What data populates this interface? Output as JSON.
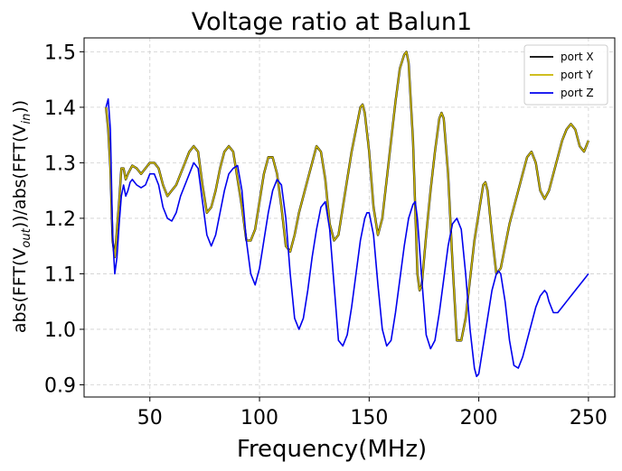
{
  "chart_data": {
    "type": "line",
    "title": "Voltage ratio at Balun1",
    "xlabel": "Frequency(MHz)",
    "ylabel": "abs(FFT(V_out))/abs(FFT(V_in))",
    "ylabel_parts": {
      "prefix": "abs(FFT(V",
      "sub1": "out",
      "middle": "))/abs(FFT(V",
      "sub2": "in",
      "suffix": "))"
    },
    "xlim": [
      20,
      262
    ],
    "ylim": [
      0.878,
      1.525
    ],
    "xticks": [
      50,
      100,
      150,
      200,
      250
    ],
    "xtick_labels": [
      "50",
      "100",
      "150",
      "200",
      "250"
    ],
    "yticks": [
      0.9,
      1.0,
      1.1,
      1.2,
      1.3,
      1.4,
      1.5
    ],
    "ytick_labels": [
      "0.9",
      "1.0",
      "1.1",
      "1.2",
      "1.3",
      "1.4",
      "1.5"
    ],
    "grid": true,
    "legend_position": "top-right",
    "series": [
      {
        "name": "port X",
        "color": "#000000",
        "x": [
          30,
          31,
          32,
          33,
          34,
          35,
          36,
          37,
          38,
          39,
          40,
          42,
          44,
          46,
          48,
          50,
          52,
          54,
          56,
          58,
          60,
          62,
          64,
          66,
          68,
          70,
          72,
          74,
          76,
          78,
          80,
          82,
          84,
          86,
          88,
          90,
          92,
          94,
          96,
          98,
          100,
          102,
          104,
          106,
          108,
          110,
          112,
          114,
          116,
          118,
          120,
          122,
          124,
          126,
          128,
          130,
          132,
          134,
          136,
          138,
          140,
          142,
          144,
          146,
          147,
          148,
          150,
          152,
          154,
          156,
          158,
          160,
          162,
          164,
          166,
          167,
          168,
          170,
          171,
          172,
          173,
          174,
          176,
          178,
          180,
          182,
          183,
          184,
          186,
          188,
          190,
          192,
          194,
          196,
          198,
          200,
          202,
          203,
          204,
          206,
          208,
          210,
          212,
          214,
          216,
          218,
          220,
          222,
          224,
          226,
          228,
          230,
          232,
          234,
          236,
          238,
          240,
          242,
          244,
          246,
          248,
          250
        ],
        "y": [
          1.4,
          1.36,
          1.29,
          1.16,
          1.13,
          1.18,
          1.23,
          1.29,
          1.29,
          1.27,
          1.28,
          1.295,
          1.29,
          1.28,
          1.29,
          1.3,
          1.3,
          1.29,
          1.26,
          1.24,
          1.25,
          1.26,
          1.28,
          1.3,
          1.32,
          1.33,
          1.32,
          1.26,
          1.21,
          1.22,
          1.25,
          1.29,
          1.32,
          1.33,
          1.32,
          1.27,
          1.22,
          1.16,
          1.16,
          1.18,
          1.23,
          1.28,
          1.31,
          1.31,
          1.28,
          1.22,
          1.15,
          1.14,
          1.17,
          1.21,
          1.24,
          1.27,
          1.3,
          1.33,
          1.32,
          1.27,
          1.19,
          1.16,
          1.17,
          1.22,
          1.27,
          1.32,
          1.36,
          1.4,
          1.405,
          1.39,
          1.32,
          1.22,
          1.17,
          1.2,
          1.27,
          1.34,
          1.41,
          1.47,
          1.495,
          1.5,
          1.48,
          1.34,
          1.22,
          1.1,
          1.07,
          1.08,
          1.17,
          1.25,
          1.32,
          1.38,
          1.39,
          1.38,
          1.28,
          1.12,
          0.98,
          0.98,
          1.02,
          1.09,
          1.16,
          1.21,
          1.26,
          1.265,
          1.25,
          1.17,
          1.1,
          1.11,
          1.15,
          1.19,
          1.22,
          1.25,
          1.28,
          1.31,
          1.32,
          1.3,
          1.25,
          1.235,
          1.25,
          1.28,
          1.31,
          1.34,
          1.36,
          1.37,
          1.36,
          1.33,
          1.32,
          1.34
        ]
      },
      {
        "name": "port Y",
        "color": "#c8b400",
        "x": [
          30,
          31,
          32,
          33,
          34,
          35,
          36,
          37,
          38,
          39,
          40,
          42,
          44,
          46,
          48,
          50,
          52,
          54,
          56,
          58,
          60,
          62,
          64,
          66,
          68,
          70,
          72,
          74,
          76,
          78,
          80,
          82,
          84,
          86,
          88,
          90,
          92,
          94,
          96,
          98,
          100,
          102,
          104,
          106,
          108,
          110,
          112,
          114,
          116,
          118,
          120,
          122,
          124,
          126,
          128,
          130,
          132,
          134,
          136,
          138,
          140,
          142,
          144,
          146,
          147,
          148,
          150,
          152,
          154,
          156,
          158,
          160,
          162,
          164,
          166,
          167,
          168,
          170,
          171,
          172,
          173,
          174,
          176,
          178,
          180,
          182,
          183,
          184,
          186,
          188,
          190,
          192,
          194,
          196,
          198,
          200,
          202,
          203,
          204,
          206,
          208,
          210,
          212,
          214,
          216,
          218,
          220,
          222,
          224,
          226,
          228,
          230,
          232,
          234,
          236,
          238,
          240,
          242,
          244,
          246,
          248,
          250
        ],
        "y": [
          1.4,
          1.36,
          1.29,
          1.16,
          1.13,
          1.18,
          1.23,
          1.29,
          1.29,
          1.27,
          1.28,
          1.295,
          1.29,
          1.28,
          1.29,
          1.3,
          1.3,
          1.29,
          1.26,
          1.24,
          1.25,
          1.26,
          1.28,
          1.3,
          1.32,
          1.33,
          1.32,
          1.26,
          1.21,
          1.22,
          1.25,
          1.29,
          1.32,
          1.33,
          1.32,
          1.27,
          1.22,
          1.16,
          1.16,
          1.18,
          1.23,
          1.28,
          1.31,
          1.31,
          1.28,
          1.22,
          1.15,
          1.14,
          1.17,
          1.21,
          1.24,
          1.27,
          1.3,
          1.33,
          1.32,
          1.27,
          1.19,
          1.16,
          1.17,
          1.22,
          1.27,
          1.32,
          1.36,
          1.4,
          1.405,
          1.39,
          1.32,
          1.22,
          1.17,
          1.2,
          1.27,
          1.34,
          1.41,
          1.47,
          1.495,
          1.5,
          1.48,
          1.34,
          1.22,
          1.1,
          1.07,
          1.08,
          1.17,
          1.25,
          1.32,
          1.38,
          1.39,
          1.38,
          1.28,
          1.12,
          0.98,
          0.98,
          1.02,
          1.09,
          1.16,
          1.21,
          1.26,
          1.265,
          1.25,
          1.17,
          1.1,
          1.11,
          1.15,
          1.19,
          1.22,
          1.25,
          1.28,
          1.31,
          1.32,
          1.3,
          1.25,
          1.235,
          1.25,
          1.28,
          1.31,
          1.34,
          1.36,
          1.37,
          1.36,
          1.33,
          1.32,
          1.34
        ]
      },
      {
        "name": "port Z",
        "color": "#0000ee",
        "x": [
          30,
          31,
          32,
          33,
          34,
          35,
          36,
          37,
          38,
          39,
          40,
          41,
          42,
          44,
          46,
          48,
          50,
          52,
          54,
          56,
          58,
          60,
          62,
          64,
          66,
          68,
          70,
          72,
          74,
          76,
          78,
          80,
          82,
          84,
          86,
          88,
          90,
          92,
          94,
          96,
          98,
          100,
          102,
          104,
          106,
          108,
          110,
          112,
          114,
          116,
          118,
          120,
          122,
          124,
          126,
          128,
          130,
          132,
          134,
          136,
          138,
          140,
          142,
          144,
          146,
          148,
          149,
          150,
          152,
          154,
          156,
          158,
          160,
          162,
          164,
          166,
          168,
          170,
          171,
          172,
          174,
          176,
          178,
          180,
          182,
          184,
          186,
          188,
          190,
          192,
          194,
          196,
          198,
          199,
          200,
          202,
          204,
          206,
          208,
          209,
          210,
          212,
          214,
          216,
          218,
          220,
          222,
          224,
          226,
          228,
          230,
          231,
          232,
          234,
          236,
          238,
          240,
          242,
          244,
          246,
          248,
          250
        ],
        "y": [
          1.4,
          1.415,
          1.36,
          1.17,
          1.1,
          1.13,
          1.19,
          1.24,
          1.26,
          1.24,
          1.25,
          1.265,
          1.27,
          1.26,
          1.255,
          1.26,
          1.28,
          1.28,
          1.26,
          1.22,
          1.2,
          1.195,
          1.21,
          1.24,
          1.26,
          1.28,
          1.3,
          1.29,
          1.23,
          1.17,
          1.15,
          1.17,
          1.21,
          1.25,
          1.28,
          1.29,
          1.295,
          1.25,
          1.16,
          1.1,
          1.08,
          1.11,
          1.16,
          1.21,
          1.25,
          1.27,
          1.26,
          1.2,
          1.1,
          1.02,
          1.0,
          1.02,
          1.07,
          1.13,
          1.18,
          1.22,
          1.23,
          1.18,
          1.08,
          0.98,
          0.97,
          0.99,
          1.04,
          1.1,
          1.16,
          1.2,
          1.21,
          1.21,
          1.17,
          1.08,
          1.0,
          0.97,
          0.98,
          1.03,
          1.09,
          1.15,
          1.2,
          1.225,
          1.23,
          1.2,
          1.09,
          0.99,
          0.965,
          0.98,
          1.03,
          1.09,
          1.15,
          1.19,
          1.2,
          1.18,
          1.1,
          1.0,
          0.93,
          0.915,
          0.92,
          0.97,
          1.02,
          1.07,
          1.1,
          1.105,
          1.1,
          1.05,
          0.98,
          0.935,
          0.93,
          0.95,
          0.98,
          1.01,
          1.04,
          1.06,
          1.07,
          1.065,
          1.05,
          1.03,
          1.03,
          1.04,
          1.05,
          1.06,
          1.07,
          1.08,
          1.09,
          1.1
        ]
      }
    ]
  }
}
